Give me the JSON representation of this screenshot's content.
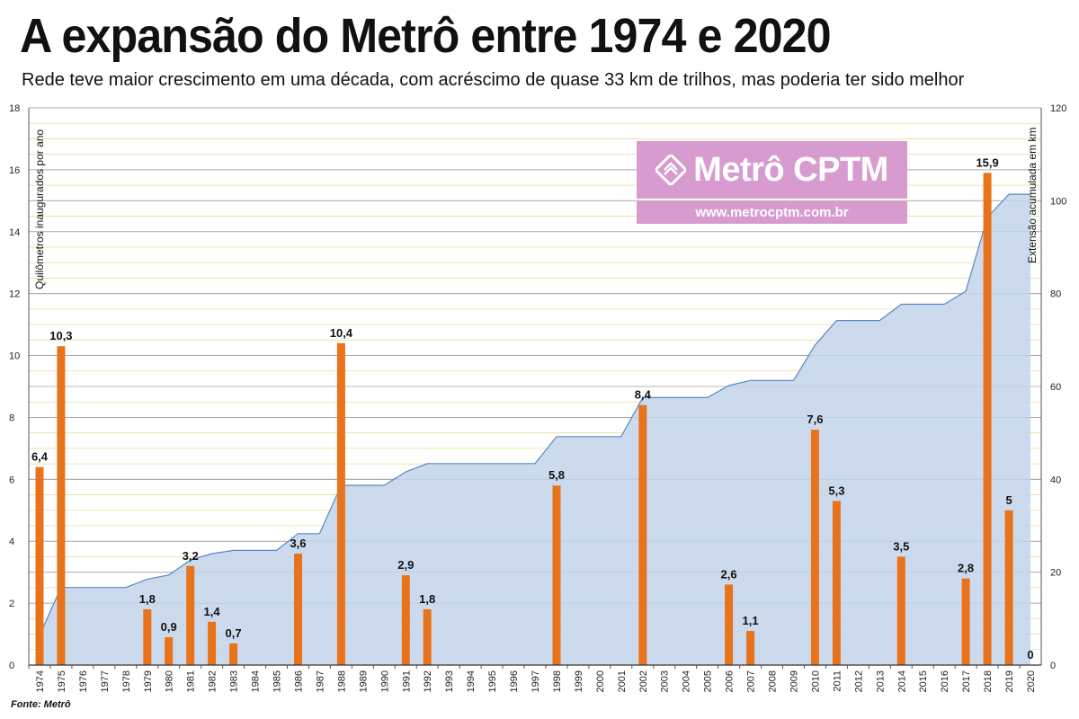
{
  "header": {
    "title": "A expansão do Metrô entre 1974 e 2020",
    "subtitle": "Rede teve maior crescimento em uma década, com acréscimo de quase 33 km de trilhos, mas poderia ter sido melhor"
  },
  "source": "Fonte: Metrô",
  "watermark": {
    "brand": "Metrô CPTM",
    "url": "www.metrocptm.com.br",
    "icon": "metro-cptm-logo-icon",
    "color": "#d89bd0"
  },
  "colors": {
    "bars": "#e8731a",
    "area_fill": "#c3d3ea",
    "area_line": "#5b86c4",
    "grid": "#a9a9a9",
    "grid_minor": "#e6dd9e"
  },
  "chart_data": {
    "type": "bar",
    "x": [
      1974,
      1975,
      1976,
      1977,
      1978,
      1979,
      1980,
      1981,
      1982,
      1983,
      1984,
      1985,
      1986,
      1987,
      1988,
      1989,
      1990,
      1991,
      1992,
      1993,
      1994,
      1995,
      1996,
      1997,
      1998,
      1999,
      2000,
      2001,
      2002,
      2003,
      2004,
      2005,
      2006,
      2007,
      2008,
      2009,
      2010,
      2011,
      2012,
      2013,
      2014,
      2015,
      2016,
      2017,
      2018,
      2019,
      2020
    ],
    "tick_labels": [
      "1974",
      "1975",
      "1976",
      "1977",
      "1978",
      "1979",
      "1980",
      "1981",
      "1982",
      "1983",
      "1984",
      "1985",
      "1986",
      "1987",
      "1988",
      "1989",
      "1990",
      "1991",
      "1992",
      "1993",
      "1994",
      "1995",
      "1996",
      "1997",
      "1998",
      "1999",
      "2000",
      "2001",
      "2002",
      "2003",
      "2004",
      "2005",
      "2006",
      "2007",
      "2008",
      "2009",
      "2010",
      "2011",
      "2012",
      "2013",
      "2014",
      "2015",
      "2016",
      "2017",
      "2018",
      "2019",
      "2020"
    ],
    "bars": [
      {
        "year": 1974,
        "value": 6.4,
        "label": "6,4"
      },
      {
        "year": 1975,
        "value": 10.3,
        "label": "10,3"
      },
      {
        "year": 1979,
        "value": 1.8,
        "label": "1,8"
      },
      {
        "year": 1980,
        "value": 0.9,
        "label": "0,9"
      },
      {
        "year": 1981,
        "value": 3.2,
        "label": "3,2"
      },
      {
        "year": 1982,
        "value": 1.4,
        "label": "1,4"
      },
      {
        "year": 1983,
        "value": 0.7,
        "label": "0,7"
      },
      {
        "year": 1986,
        "value": 3.6,
        "label": "3,6"
      },
      {
        "year": 1988,
        "value": 10.4,
        "label": "10,4"
      },
      {
        "year": 1991,
        "value": 2.9,
        "label": "2,9"
      },
      {
        "year": 1992,
        "value": 1.8,
        "label": "1,8"
      },
      {
        "year": 1998,
        "value": 5.8,
        "label": "5,8"
      },
      {
        "year": 2002,
        "value": 8.4,
        "label": "8,4"
      },
      {
        "year": 2006,
        "value": 2.6,
        "label": "2,6"
      },
      {
        "year": 2007,
        "value": 1.1,
        "label": "1,1"
      },
      {
        "year": 2010,
        "value": 7.6,
        "label": "7,6"
      },
      {
        "year": 2011,
        "value": 5.3,
        "label": "5,3"
      },
      {
        "year": 2014,
        "value": 3.5,
        "label": "3,5"
      },
      {
        "year": 2017,
        "value": 2.8,
        "label": "2,8"
      },
      {
        "year": 2018,
        "value": 15.9,
        "label": "15,9"
      },
      {
        "year": 2019,
        "value": 5.0,
        "label": "5"
      },
      {
        "year": 2020,
        "value": 0,
        "label": "0"
      }
    ],
    "cumulative": [
      {
        "year": 1974,
        "km": 6.4
      },
      {
        "year": 1975,
        "km": 16.7
      },
      {
        "year": 1978,
        "km": 16.7
      },
      {
        "year": 1979,
        "km": 18.5
      },
      {
        "year": 1980,
        "km": 19.4
      },
      {
        "year": 1981,
        "km": 22.6
      },
      {
        "year": 1982,
        "km": 24.0
      },
      {
        "year": 1983,
        "km": 24.7
      },
      {
        "year": 1985,
        "km": 24.7
      },
      {
        "year": 1986,
        "km": 28.3
      },
      {
        "year": 1987,
        "km": 28.3
      },
      {
        "year": 1988,
        "km": 38.7
      },
      {
        "year": 1990,
        "km": 38.7
      },
      {
        "year": 1991,
        "km": 41.6
      },
      {
        "year": 1992,
        "km": 43.4
      },
      {
        "year": 1997,
        "km": 43.4
      },
      {
        "year": 1998,
        "km": 49.2
      },
      {
        "year": 2001,
        "km": 49.2
      },
      {
        "year": 2002,
        "km": 57.6
      },
      {
        "year": 2005,
        "km": 57.6
      },
      {
        "year": 2006,
        "km": 60.2
      },
      {
        "year": 2007,
        "km": 61.3
      },
      {
        "year": 2009,
        "km": 61.3
      },
      {
        "year": 2010,
        "km": 68.9
      },
      {
        "year": 2011,
        "km": 74.2
      },
      {
        "year": 2013,
        "km": 74.2
      },
      {
        "year": 2014,
        "km": 77.7
      },
      {
        "year": 2016,
        "km": 77.7
      },
      {
        "year": 2017,
        "km": 80.5
      },
      {
        "year": 2018,
        "km": 96.4
      },
      {
        "year": 2019,
        "km": 101.4
      },
      {
        "year": 2020,
        "km": 101.4
      }
    ],
    "y_left": {
      "label": "Quilômetros inaugurados por ano",
      "ylim": [
        0,
        18
      ],
      "ticks": [
        0,
        2,
        4,
        6,
        8,
        10,
        12,
        14,
        16,
        18
      ]
    },
    "y_right": {
      "label": "Extensão acumulada em km",
      "ylim": [
        0,
        120
      ],
      "ticks": [
        0,
        20,
        40,
        60,
        80,
        100,
        120
      ]
    },
    "grid": true
  }
}
